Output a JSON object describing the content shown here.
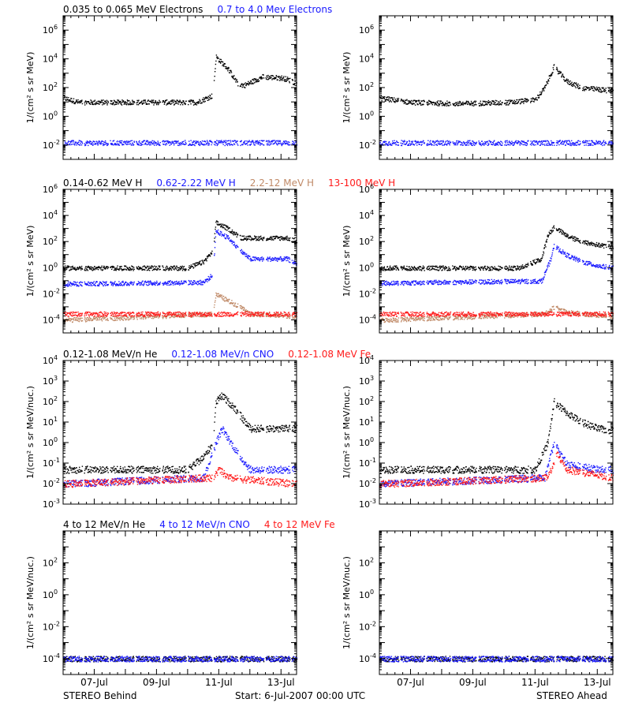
{
  "colors": {
    "black": "#000000",
    "blue": "#1a1aff",
    "brown": "#c08a68",
    "red": "#ff1a1a"
  },
  "footer": {
    "left": "STEREO Behind",
    "start": "Start:  6-Jul-2007 00:00 UTC",
    "right": "STEREO Ahead"
  },
  "x_ticks": [
    "07-Jul",
    "09-Jul",
    "11-Jul",
    "13-Jul"
  ],
  "chart_data": [
    {
      "type": "scatter",
      "panel": "Electrons",
      "legend": [
        {
          "name": "0.035 to 0.065 MeV Electrons",
          "color": "black"
        },
        {
          "name": "0.7 to 4.0 Mev Electrons",
          "color": "blue"
        }
      ],
      "ylabel": "1/(cm² s sr MeV)",
      "log_y": true,
      "ylim_exp": [
        -3,
        7
      ],
      "yticks_exp": [
        -2,
        0,
        2,
        4,
        6
      ],
      "xlim_days": [
        6.0,
        13.5
      ],
      "behind": {
        "series": [
          {
            "color": "black",
            "points": [
              [
                6.0,
                20
              ],
              [
                6.5,
                10
              ],
              [
                7.5,
                10
              ],
              [
                8.5,
                10
              ],
              [
                9.5,
                10
              ],
              [
                10.3,
                10
              ],
              [
                10.8,
                30
              ],
              [
                10.9,
                15000
              ],
              [
                11.3,
                2000
              ],
              [
                11.6,
                200
              ],
              [
                11.8,
                150
              ],
              [
                12.4,
                600
              ],
              [
                13.0,
                500
              ],
              [
                13.2,
                400
              ],
              [
                13.5,
                200
              ]
            ]
          },
          {
            "color": "blue",
            "points": [
              [
                6.0,
                0.015
              ],
              [
                13.5,
                0.015
              ]
            ]
          }
        ]
      },
      "ahead": {
        "series": [
          {
            "color": "black",
            "points": [
              [
                6.0,
                20
              ],
              [
                7.0,
                10
              ],
              [
                8.5,
                8
              ],
              [
                10.2,
                10
              ],
              [
                11.0,
                15
              ],
              [
                11.3,
                100
              ],
              [
                11.6,
                3000
              ],
              [
                12.0,
                300
              ],
              [
                12.5,
                100
              ],
              [
                13.0,
                80
              ],
              [
                13.5,
                60
              ]
            ]
          },
          {
            "color": "blue",
            "points": [
              [
                6.0,
                0.015
              ],
              [
                13.5,
                0.015
              ]
            ]
          }
        ]
      }
    },
    {
      "type": "scatter",
      "panel": "Protons",
      "legend": [
        {
          "name": "0.14-0.62 MeV H",
          "color": "black"
        },
        {
          "name": "0.62-2.22 MeV H",
          "color": "blue"
        },
        {
          "name": "2.2-12 MeV H",
          "color": "brown"
        },
        {
          "name": "13-100 MeV H",
          "color": "red"
        }
      ],
      "ylabel": "1/(cm² s sr MeV)",
      "log_y": true,
      "ylim_exp": [
        -5,
        6
      ],
      "yticks_exp": [
        -4,
        -2,
        0,
        2,
        4,
        6
      ],
      "xlim_days": [
        6.0,
        13.5
      ],
      "behind": {
        "series": [
          {
            "color": "black",
            "points": [
              [
                6.0,
                1
              ],
              [
                10.0,
                1
              ],
              [
                10.5,
                3
              ],
              [
                10.8,
                20
              ],
              [
                10.9,
                3000
              ],
              [
                11.3,
                1000
              ],
              [
                11.7,
                200
              ],
              [
                12.0,
                200
              ],
              [
                13.2,
                200
              ],
              [
                13.5,
                100
              ]
            ]
          },
          {
            "color": "blue",
            "points": [
              [
                6.0,
                0.06
              ],
              [
                10.5,
                0.08
              ],
              [
                10.8,
                0.3
              ],
              [
                10.9,
                700
              ],
              [
                11.3,
                200
              ],
              [
                11.7,
                20
              ],
              [
                12.0,
                5
              ],
              [
                13.2,
                5
              ],
              [
                13.5,
                2
              ]
            ]
          },
          {
            "color": "brown",
            "points": [
              [
                6.0,
                0.0001
              ],
              [
                10.8,
                0.0003
              ],
              [
                10.9,
                0.01
              ],
              [
                11.3,
                0.003
              ],
              [
                11.7,
                0.001
              ],
              [
                12.0,
                0.0003
              ],
              [
                13.5,
                0.0002
              ]
            ]
          },
          {
            "color": "red",
            "points": [
              [
                6.0,
                0.0003
              ],
              [
                13.5,
                0.0003
              ]
            ]
          }
        ]
      },
      "ahead": {
        "series": [
          {
            "color": "black",
            "points": [
              [
                6.0,
                1
              ],
              [
                10.5,
                1
              ],
              [
                11.2,
                5
              ],
              [
                11.4,
                300
              ],
              [
                11.6,
                1500
              ],
              [
                12.0,
                300
              ],
              [
                12.5,
                100
              ],
              [
                13.0,
                60
              ],
              [
                13.5,
                40
              ]
            ]
          },
          {
            "color": "blue",
            "points": [
              [
                6.0,
                0.07
              ],
              [
                11.2,
                0.1
              ],
              [
                11.5,
                5
              ],
              [
                11.6,
                50
              ],
              [
                12.0,
                10
              ],
              [
                12.5,
                3
              ],
              [
                13.0,
                1.5
              ],
              [
                13.5,
                1
              ]
            ]
          },
          {
            "color": "brown",
            "points": [
              [
                6.0,
                0.0001
              ],
              [
                11.3,
                0.0003
              ],
              [
                11.6,
                0.001
              ],
              [
                12.0,
                0.0004
              ],
              [
                13.5,
                0.0002
              ]
            ]
          },
          {
            "color": "red",
            "points": [
              [
                6.0,
                0.0003
              ],
              [
                13.5,
                0.0003
              ]
            ]
          }
        ]
      }
    },
    {
      "type": "scatter",
      "panel": "Heavy ions 0.12-1.08 MeV/n",
      "legend": [
        {
          "name": "0.12-1.08 MeV/n He",
          "color": "black"
        },
        {
          "name": "0.12-1.08 MeV/n CNO",
          "color": "blue"
        },
        {
          "name": "0.12-1.08 MeV Fe",
          "color": "red"
        }
      ],
      "ylabel": "1/(cm² s sr MeV/nuc.)",
      "log_y": true,
      "ylim_exp": [
        -3,
        4
      ],
      "yticks_exp": [
        -3,
        -2,
        -1,
        0,
        1,
        2,
        3,
        4
      ],
      "xlim_days": [
        6.0,
        13.5
      ],
      "behind": {
        "series": [
          {
            "color": "black",
            "points": [
              [
                6.0,
                0.05
              ],
              [
                10.0,
                0.05
              ],
              [
                10.5,
                0.2
              ],
              [
                10.8,
                1
              ],
              [
                10.9,
                100
              ],
              [
                11.1,
                200
              ],
              [
                11.5,
                50
              ],
              [
                12.0,
                5
              ],
              [
                13.5,
                5
              ]
            ]
          },
          {
            "color": "blue",
            "points": [
              [
                6.0,
                0.01
              ],
              [
                10.5,
                0.02
              ],
              [
                10.9,
                1
              ],
              [
                11.1,
                5
              ],
              [
                11.6,
                0.3
              ],
              [
                12.0,
                0.05
              ],
              [
                13.5,
                0.05
              ]
            ]
          },
          {
            "color": "red",
            "points": [
              [
                6.0,
                0.01
              ],
              [
                10.8,
                0.02
              ],
              [
                11.0,
                0.05
              ],
              [
                11.3,
                0.02
              ],
              [
                13.5,
                0.01
              ]
            ]
          }
        ]
      },
      "ahead": {
        "series": [
          {
            "color": "black",
            "points": [
              [
                6.0,
                0.05
              ],
              [
                11.0,
                0.05
              ],
              [
                11.4,
                1
              ],
              [
                11.6,
                100
              ],
              [
                12.0,
                30
              ],
              [
                12.5,
                10
              ],
              [
                13.0,
                5
              ],
              [
                13.5,
                4
              ]
            ]
          },
          {
            "color": "blue",
            "points": [
              [
                6.0,
                0.01
              ],
              [
                11.3,
                0.02
              ],
              [
                11.6,
                1
              ],
              [
                12.0,
                0.1
              ],
              [
                13.0,
                0.05
              ],
              [
                13.5,
                0.05
              ]
            ]
          },
          {
            "color": "red",
            "points": [
              [
                6.0,
                0.01
              ],
              [
                11.4,
                0.02
              ],
              [
                11.7,
                0.3
              ],
              [
                12.0,
                0.05
              ],
              [
                13.5,
                0.02
              ]
            ]
          }
        ]
      }
    },
    {
      "type": "scatter",
      "panel": "Heavy ions 4 to 12 MeV/n",
      "legend": [
        {
          "name": "4 to 12 MeV/n He",
          "color": "black"
        },
        {
          "name": "4 to 12 MeV/n CNO",
          "color": "blue"
        },
        {
          "name": "4 to 12 MeV Fe",
          "color": "red"
        }
      ],
      "ylabel": "1/(cm² s sr MeV/nuc.)",
      "log_y": true,
      "ylim_exp": [
        -5,
        4
      ],
      "yticks_exp": [
        -4,
        -2,
        0,
        2
      ],
      "xlim_days": [
        6.0,
        13.5
      ],
      "behind": {
        "series": [
          {
            "color": "black",
            "points": [
              [
                6.0,
                0.0001
              ],
              [
                13.5,
                0.0001
              ]
            ]
          },
          {
            "color": "blue",
            "points": [
              [
                6.0,
                0.0001
              ],
              [
                13.5,
                0.0001
              ]
            ]
          }
        ]
      },
      "ahead": {
        "series": [
          {
            "color": "black",
            "points": [
              [
                6.0,
                0.0001
              ],
              [
                13.5,
                0.0001
              ]
            ]
          },
          {
            "color": "blue",
            "points": [
              [
                6.0,
                0.0001
              ],
              [
                13.5,
                0.0001
              ]
            ]
          }
        ]
      }
    }
  ]
}
